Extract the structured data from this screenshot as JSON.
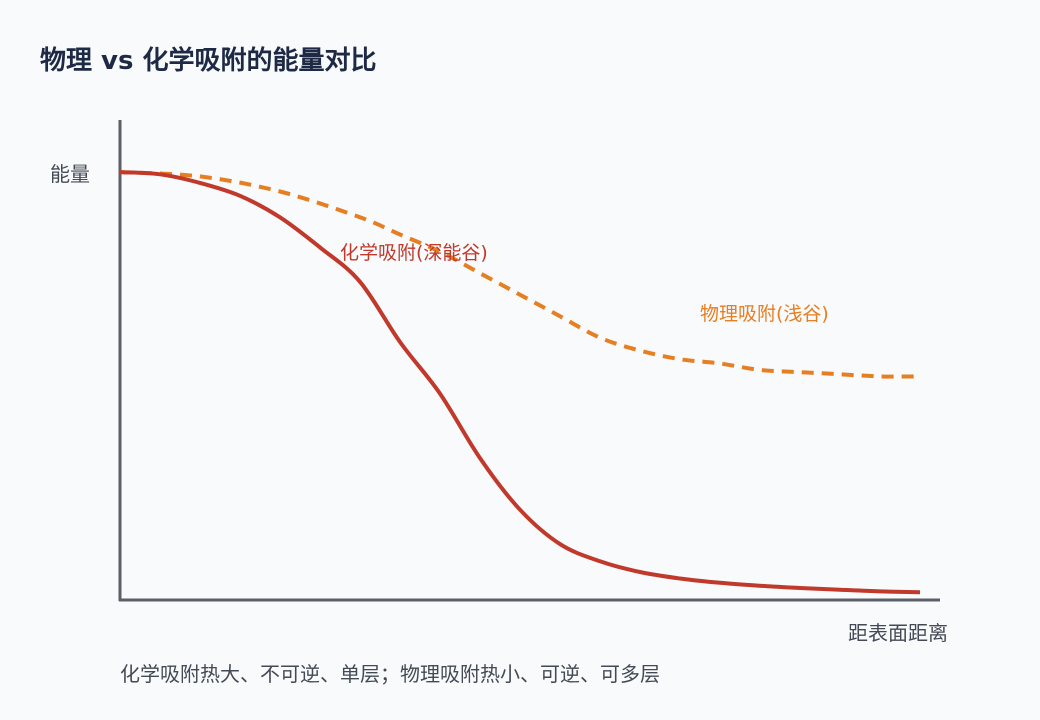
{
  "title": "物理 vs 化学吸附的能量对比",
  "footnote": "化学吸附热大、不可逆、单层；物理吸附热小、可逆、可多层",
  "chart_data": {
    "type": "line",
    "xlabel": "距表面距离",
    "ylabel": "能量",
    "xlim": [
      0,
      1
    ],
    "ylim": [
      0,
      1
    ],
    "grid": false,
    "series": [
      {
        "name": "化学吸附(深能谷)",
        "color": "#c0392b",
        "style": "solid",
        "x": [
          0.0,
          0.05,
          0.1,
          0.15,
          0.2,
          0.25,
          0.3,
          0.35,
          0.4,
          0.45,
          0.5,
          0.55,
          0.6,
          0.65,
          0.7,
          0.75,
          0.8,
          0.85,
          0.9,
          0.95,
          1.0
        ],
        "y": [
          0.995,
          0.99,
          0.97,
          0.94,
          0.89,
          0.82,
          0.74,
          0.6,
          0.48,
          0.33,
          0.21,
          0.13,
          0.09,
          0.065,
          0.05,
          0.04,
          0.033,
          0.028,
          0.024,
          0.02,
          0.018
        ]
      },
      {
        "name": "物理吸附(浅谷)",
        "color": "#e67e22",
        "style": "dashed",
        "x": [
          0.0,
          0.1,
          0.2,
          0.3,
          0.35,
          0.4,
          0.45,
          0.5,
          0.55,
          0.6,
          0.65,
          0.7,
          0.75,
          0.8,
          0.85,
          0.9,
          0.95,
          1.0
        ],
        "y": [
          0.995,
          0.985,
          0.95,
          0.89,
          0.85,
          0.81,
          0.76,
          0.71,
          0.66,
          0.61,
          0.58,
          0.56,
          0.55,
          0.535,
          0.53,
          0.525,
          0.52,
          0.52
        ]
      }
    ]
  }
}
